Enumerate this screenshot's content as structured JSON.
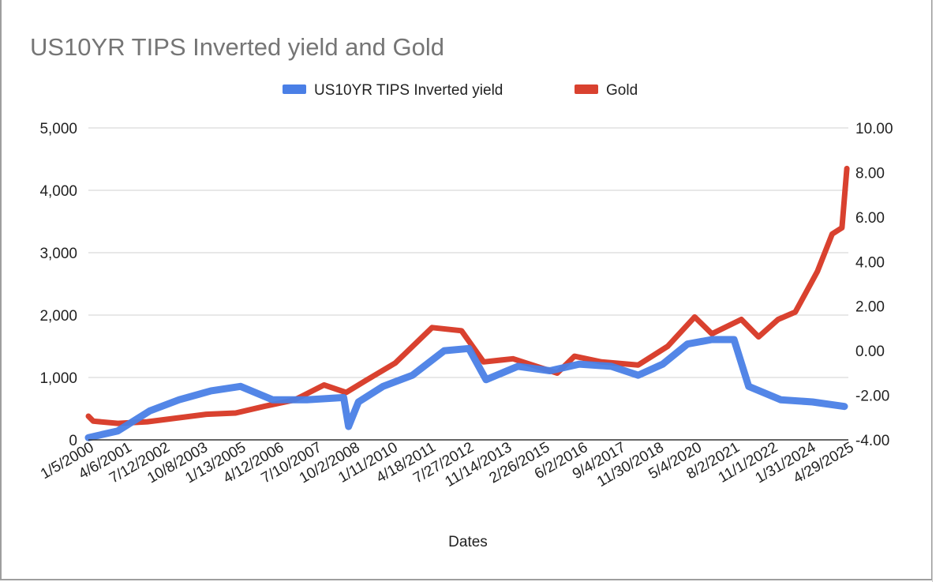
{
  "chart_data": {
    "type": "line",
    "title": "US10YR TIPS Inverted yield and Gold",
    "xlabel": "Dates",
    "ylabel_left": "",
    "ylabel_right": "",
    "legend_position": "top",
    "grid": true,
    "ylim_left": [
      0,
      5000
    ],
    "ylim_right": [
      -4,
      10
    ],
    "yticks_left": [
      "0",
      "1,000",
      "2,000",
      "3,000",
      "4,000",
      "5,000"
    ],
    "yticks_right": [
      "-4.00",
      "-2.00",
      "0.00",
      "2.00",
      "4.00",
      "6.00",
      "8.00",
      "10.00"
    ],
    "xticks": [
      "1/5/2000",
      "4/6/2001",
      "7/12/2002",
      "10/8/2003",
      "1/13/2005",
      "4/12/2006",
      "7/10/2007",
      "10/2/2008",
      "1/11/2010",
      "4/18/2011",
      "7/27/2012",
      "11/14/2013",
      "2/26/2015",
      "6/2/2016",
      "9/4/2017",
      "11/30/2018",
      "5/4/2020",
      "8/2/2021",
      "11/1/2022",
      "1/31/2024",
      "4/29/2025"
    ],
    "series": [
      {
        "name": "US10YR TIPS Inverted yield",
        "axis": "right",
        "color": "#4a7fe6",
        "points": [
          [
            "2000-01",
            -3.9
          ],
          [
            "2001-01",
            -3.6
          ],
          [
            "2002-02",
            -2.7
          ],
          [
            "2003-02",
            -2.2
          ],
          [
            "2004-03",
            -1.8
          ],
          [
            "2005-03",
            -1.6
          ],
          [
            "2006-04",
            -2.2
          ],
          [
            "2007-06",
            -2.2
          ],
          [
            "2008-09",
            -2.1
          ],
          [
            "2008-11",
            -3.4
          ],
          [
            "2009-03",
            -2.3
          ],
          [
            "2010-01",
            -1.6
          ],
          [
            "2011-01",
            -1.1
          ],
          [
            "2012-02",
            0.0
          ],
          [
            "2012-12",
            0.1
          ],
          [
            "2013-07",
            -1.3
          ],
          [
            "2014-08",
            -0.7
          ],
          [
            "2015-09",
            -0.9
          ],
          [
            "2016-09",
            -0.6
          ],
          [
            "2017-10",
            -0.7
          ],
          [
            "2018-09",
            -1.1
          ],
          [
            "2019-07",
            -0.6
          ],
          [
            "2020-05",
            0.3
          ],
          [
            "2021-03",
            0.5
          ],
          [
            "2021-12",
            0.5
          ],
          [
            "2022-06",
            -1.6
          ],
          [
            "2023-07",
            -2.2
          ],
          [
            "2024-08",
            -2.3
          ],
          [
            "2025-09",
            -2.5
          ]
        ]
      },
      {
        "name": "Gold",
        "axis": "left",
        "color": "#d9412f",
        "points": [
          [
            "2000-01",
            380
          ],
          [
            "2000-03",
            300
          ],
          [
            "2001-01",
            265
          ],
          [
            "2002-01",
            290
          ],
          [
            "2003-01",
            350
          ],
          [
            "2004-01",
            410
          ],
          [
            "2005-01",
            430
          ],
          [
            "2006-01",
            540
          ],
          [
            "2007-01",
            640
          ],
          [
            "2008-01",
            880
          ],
          [
            "2008-10",
            760
          ],
          [
            "2009-06",
            950
          ],
          [
            "2010-06",
            1230
          ],
          [
            "2011-09",
            1800
          ],
          [
            "2012-09",
            1750
          ],
          [
            "2013-06",
            1250
          ],
          [
            "2014-06",
            1300
          ],
          [
            "2015-12",
            1070
          ],
          [
            "2016-07",
            1340
          ],
          [
            "2017-06",
            1250
          ],
          [
            "2018-09",
            1200
          ],
          [
            "2019-09",
            1500
          ],
          [
            "2020-08",
            1970
          ],
          [
            "2021-03",
            1700
          ],
          [
            "2022-03",
            1930
          ],
          [
            "2022-10",
            1650
          ],
          [
            "2023-06",
            1930
          ],
          [
            "2024-01",
            2050
          ],
          [
            "2024-10",
            2700
          ],
          [
            "2025-04",
            3300
          ],
          [
            "2025-08",
            3400
          ],
          [
            "2025-10",
            4350
          ]
        ]
      }
    ]
  }
}
